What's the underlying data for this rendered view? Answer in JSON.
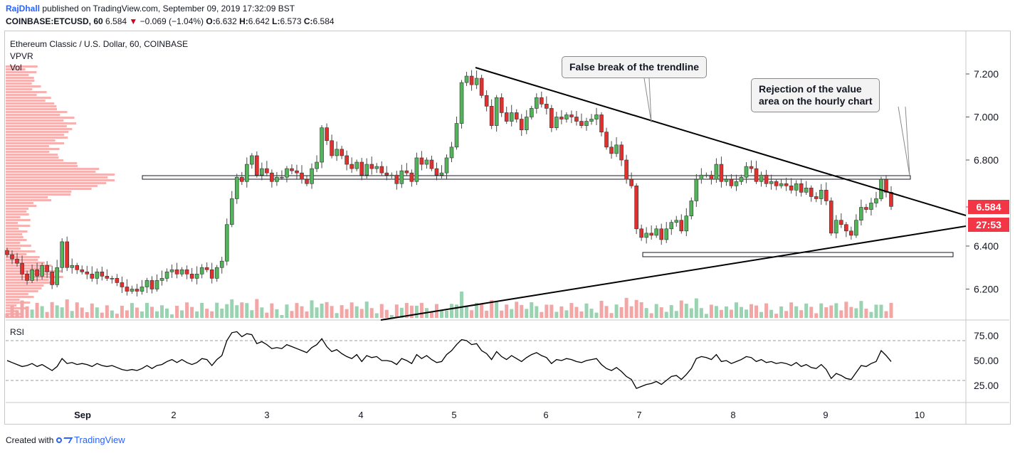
{
  "header": {
    "author": "RajDhall",
    "published": "published on TradingView.com, September 09, 2019 17:32:09 BST",
    "symbol": "COINBASE:ETCUSD, 60",
    "last": "6.584",
    "change": "−0.069 (−1.04%)",
    "o_label": "O:",
    "o": "6.632",
    "h_label": "H:",
    "h": "6.642",
    "l_label": "L:",
    "l": "6.573",
    "c_label": "C:",
    "c": "6.584"
  },
  "pane": {
    "title": "Ethereum Classic / U.S. Dollar, 60, COINBASE",
    "vpvr": "VPVR",
    "vol": "Vol",
    "rsi": "RSI"
  },
  "annotations": {
    "false_break": "False break of the trendline",
    "rejection_line1": "Rejection of the value",
    "rejection_line2": "area on the hourly chart"
  },
  "badges": {
    "price": "6.584",
    "countdown": "27:53",
    "color": "#f23645"
  },
  "colors": {
    "up": "#53b35a",
    "down": "#e1312f",
    "vol_up": "#99d3b1",
    "vol_down": "#f3a6a6",
    "vpvr": "#f5a3a3"
  },
  "footer": {
    "created_with": "Created with",
    "brand": "TradingView"
  },
  "chart_data": [
    {
      "type": "candlestick",
      "title": "Ethereum Classic / U.S. Dollar, 60, COINBASE",
      "x_ticks": [
        "Sep",
        "2",
        "3",
        "4",
        "5",
        "6",
        "7",
        "8",
        "9",
        "10"
      ],
      "y_ticks": [
        "7.200",
        "7.000",
        "6.800",
        "6.400",
        "6.200"
      ],
      "ylim": [
        6.08,
        7.35
      ],
      "closes": [
        6.36,
        6.34,
        6.32,
        6.27,
        6.24,
        6.29,
        6.26,
        6.31,
        6.28,
        6.22,
        6.3,
        6.42,
        6.3,
        6.31,
        6.29,
        6.28,
        6.27,
        6.25,
        6.28,
        6.26,
        6.25,
        6.25,
        6.23,
        6.21,
        6.19,
        6.2,
        6.19,
        6.21,
        6.24,
        6.2,
        6.24,
        6.25,
        6.28,
        6.29,
        6.27,
        6.29,
        6.27,
        6.25,
        6.27,
        6.3,
        6.29,
        6.25,
        6.3,
        6.33,
        6.5,
        6.62,
        6.72,
        6.7,
        6.78,
        6.82,
        6.73,
        6.76,
        6.74,
        6.7,
        6.72,
        6.72,
        6.76,
        6.75,
        6.74,
        6.71,
        6.69,
        6.76,
        6.79,
        6.95,
        6.89,
        6.82,
        6.85,
        6.82,
        6.78,
        6.76,
        6.79,
        6.73,
        6.78,
        6.76,
        6.77,
        6.74,
        6.73,
        6.73,
        6.69,
        6.75,
        6.74,
        6.7,
        6.81,
        6.78,
        6.8,
        6.76,
        6.73,
        6.74,
        6.81,
        6.86,
        6.97,
        7.16,
        7.19,
        7.15,
        7.18,
        7.1,
        7.05,
        6.96,
        7.09,
        7.02,
        6.98,
        7.02,
        6.99,
        6.94,
        7.0,
        7.04,
        7.09,
        7.06,
        7.04,
        6.95,
        7.0,
        6.99,
        7.01,
        7.0,
        6.98,
        6.96,
        6.98,
        6.99,
        7.01,
        6.93,
        6.86,
        6.83,
        6.87,
        6.8,
        6.71,
        6.68,
        6.48,
        6.44,
        6.46,
        6.45,
        6.48,
        6.43,
        6.48,
        6.51,
        6.52,
        6.47,
        6.54,
        6.61,
        6.71,
        6.73,
        6.73,
        6.71,
        6.78,
        6.7,
        6.71,
        6.68,
        6.7,
        6.72,
        6.77,
        6.76,
        6.7,
        6.73,
        6.69,
        6.7,
        6.68,
        6.69,
        6.68,
        6.66,
        6.69,
        6.65,
        6.67,
        6.63,
        6.62,
        6.66,
        6.61,
        6.46,
        6.52,
        6.5,
        6.47,
        6.45,
        6.52,
        6.58,
        6.57,
        6.6,
        6.62,
        6.71,
        6.65,
        6.584
      ],
      "rsi": [
        50,
        48,
        46,
        44,
        45,
        47,
        44,
        46,
        43,
        40,
        44,
        52,
        47,
        48,
        46,
        47,
        46,
        44,
        47,
        45,
        44,
        45,
        43,
        41,
        40,
        41,
        40,
        42,
        45,
        42,
        45,
        46,
        49,
        51,
        48,
        51,
        48,
        46,
        48,
        52,
        51,
        45,
        51,
        55,
        70,
        78,
        79,
        74,
        77,
        76,
        67,
        69,
        66,
        62,
        63,
        62,
        66,
        64,
        62,
        60,
        58,
        63,
        66,
        72,
        64,
        59,
        61,
        57,
        54,
        52,
        56,
        49,
        55,
        53,
        54,
        50,
        50,
        49,
        46,
        52,
        50,
        47,
        56,
        52,
        55,
        51,
        48,
        49,
        56,
        60,
        66,
        71,
        70,
        66,
        67,
        60,
        57,
        51,
        59,
        54,
        51,
        55,
        52,
        49,
        53,
        56,
        58,
        55,
        53,
        47,
        51,
        50,
        52,
        51,
        49,
        48,
        50,
        51,
        52,
        46,
        42,
        40,
        43,
        39,
        34,
        31,
        22,
        24,
        26,
        27,
        29,
        26,
        30,
        34,
        35,
        31,
        36,
        42,
        52,
        54,
        53,
        51,
        56,
        49,
        50,
        47,
        49,
        51,
        54,
        53,
        49,
        51,
        48,
        49,
        47,
        48,
        47,
        45,
        48,
        44,
        46,
        43,
        42,
        46,
        41,
        32,
        37,
        35,
        32,
        31,
        38,
        45,
        44,
        47,
        49,
        60,
        55,
        49
      ],
      "rsi_ticks": [
        "75.00",
        "50.00",
        "25.00"
      ]
    }
  ]
}
